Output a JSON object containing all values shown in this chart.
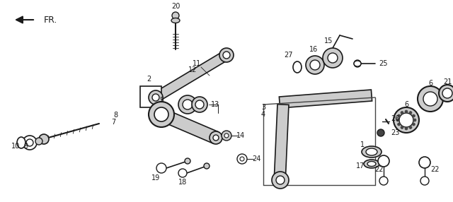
{
  "bg_color": "#ffffff",
  "line_color": "#1a1a1a",
  "figsize": [
    6.4,
    2.86
  ],
  "dpi": 100
}
